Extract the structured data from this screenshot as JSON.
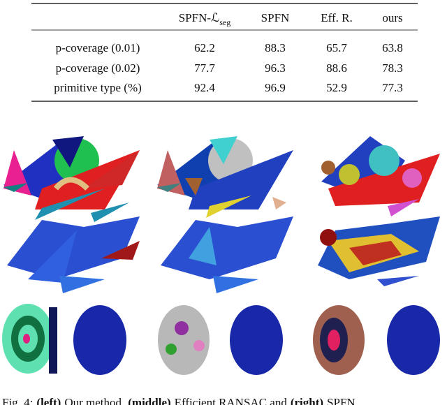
{
  "table": {
    "column_headers": [
      {
        "main": "SPFN-ℒ",
        "sub": "seg"
      },
      "SPFN",
      "Eff. R.",
      "ours"
    ],
    "rows": [
      [
        "p-coverage (0.01)",
        "62.2",
        "88.3",
        "65.7",
        "63.8"
      ],
      [
        "p-coverage (0.02)",
        "77.7",
        "96.3",
        "88.6",
        "78.3"
      ],
      [
        "primitive type (%)",
        "92.4",
        "96.9",
        "52.9",
        "77.3"
      ]
    ]
  },
  "caption": {
    "label": "Fig. 4:",
    "segments": [
      {
        "bold": "(left)",
        "text": "Our method,"
      },
      {
        "bold": "(middle)",
        "text": "Efficient RANSAC and"
      },
      {
        "bold": "(right)",
        "text": "SPFN"
      }
    ]
  }
}
